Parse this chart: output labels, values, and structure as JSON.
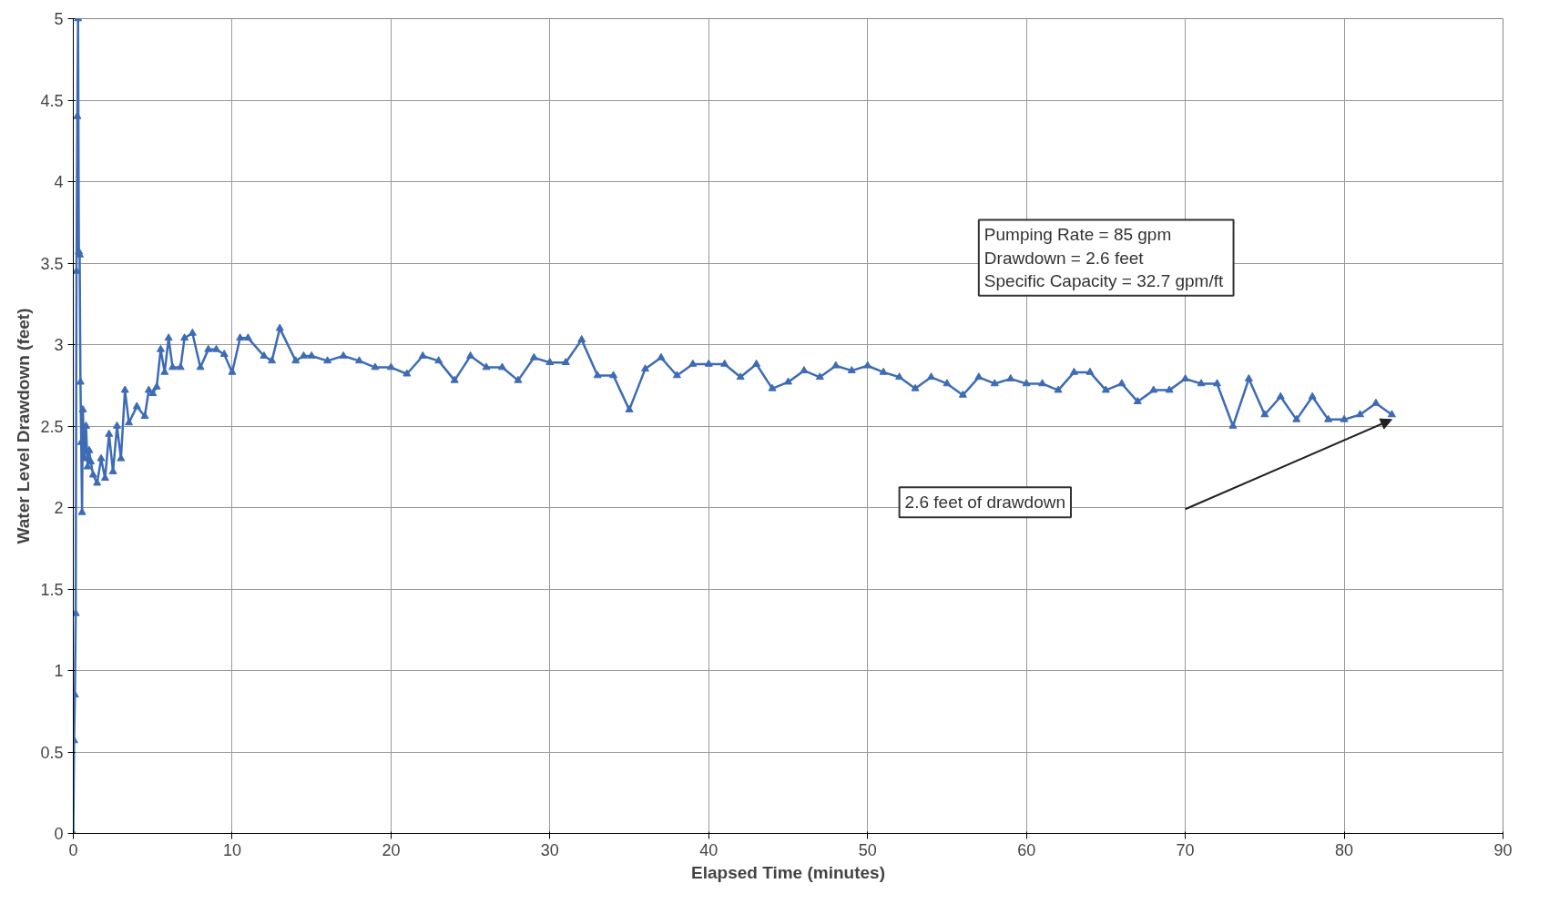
{
  "chart_data": {
    "type": "line",
    "xlabel": "Elapsed Time (minutes)",
    "ylabel": "Water Level Drawdown (feet)",
    "xlim": [
      0,
      90
    ],
    "xticks": [
      0,
      10,
      20,
      30,
      40,
      50,
      60,
      70,
      80,
      90
    ],
    "ylim": [
      0,
      5
    ],
    "yticks": [
      0,
      0.5,
      1,
      1.5,
      2,
      2.5,
      3,
      3.5,
      4,
      4.5,
      5
    ],
    "grid": true,
    "marker": "triangle",
    "line_style": "solid",
    "annotations": [
      "Pumping Rate = 85 gpm",
      "Drawdown = 2.6 feet",
      "Specific Capacity =  32.7 gpm/ft",
      "2.6 feet of drawdown"
    ],
    "series": [
      {
        "color": "#3d6bb5",
        "x": [
          0,
          0.05,
          0.1,
          0.15,
          0.2,
          0.25,
          0.3,
          0.35,
          0.4,
          0.45,
          0.5,
          0.55,
          0.6,
          0.7,
          0.8,
          0.9,
          1.0,
          1.1,
          1.25,
          1.5,
          1.75,
          2.0,
          2.25,
          2.5,
          2.75,
          3.0,
          3.25,
          3.5,
          4.0,
          4.5,
          4.75,
          5.0,
          5.25,
          5.5,
          5.75,
          6.0,
          6.25,
          6.75,
          7.0,
          7.5,
          8,
          8.5,
          9,
          9.5,
          10,
          10.5,
          11,
          12,
          12.5,
          13,
          14,
          14.5,
          15,
          16,
          17,
          18,
          19,
          20,
          21,
          22,
          23,
          24,
          25,
          26,
          27,
          28,
          29,
          30,
          31,
          32,
          33,
          34,
          35,
          36,
          37,
          38,
          39,
          40,
          41,
          42,
          43,
          44,
          45,
          46,
          47,
          48,
          49,
          50,
          51,
          52,
          53,
          54,
          55,
          56,
          57,
          58,
          59,
          60,
          61,
          62,
          63,
          64,
          65,
          66,
          67,
          68,
          69,
          70,
          71,
          72,
          73,
          74,
          75,
          76,
          77,
          78,
          79,
          80,
          81,
          82,
          83
        ],
        "values": [
          0,
          0.57,
          0.85,
          1.35,
          3.45,
          4.4,
          5.0,
          3.57,
          3.55,
          2.77,
          2.4,
          1.97,
          2.6,
          2.3,
          2.5,
          2.25,
          2.35,
          2.28,
          2.2,
          2.15,
          2.3,
          2.18,
          2.45,
          2.22,
          2.5,
          2.3,
          2.72,
          2.52,
          2.62,
          2.56,
          2.72,
          2.7,
          2.74,
          2.97,
          2.83,
          3.04,
          2.86,
          2.86,
          3.04,
          3.07,
          2.86,
          2.97,
          2.97,
          2.94,
          2.83,
          3.04,
          3.04,
          2.93,
          2.9,
          3.1,
          2.9,
          2.93,
          2.93,
          2.9,
          2.93,
          2.9,
          2.86,
          2.86,
          2.82,
          2.93,
          2.9,
          2.78,
          2.93,
          2.86,
          2.86,
          2.78,
          2.92,
          2.89,
          2.89,
          3.03,
          2.81,
          2.81,
          2.6,
          2.85,
          2.92,
          2.81,
          2.88,
          2.88,
          2.88,
          2.8,
          2.88,
          2.73,
          2.77,
          2.84,
          2.8,
          2.87,
          2.84,
          2.87,
          2.83,
          2.8,
          2.73,
          2.8,
          2.76,
          2.69,
          2.8,
          2.76,
          2.79,
          2.76,
          2.76,
          2.72,
          2.83,
          2.83,
          2.72,
          2.76,
          2.65,
          2.72,
          2.72,
          2.79,
          2.76,
          2.76,
          2.5,
          2.79,
          2.57,
          2.68,
          2.54,
          2.68,
          2.54,
          2.54,
          2.57,
          2.64,
          2.57
        ]
      }
    ]
  }
}
